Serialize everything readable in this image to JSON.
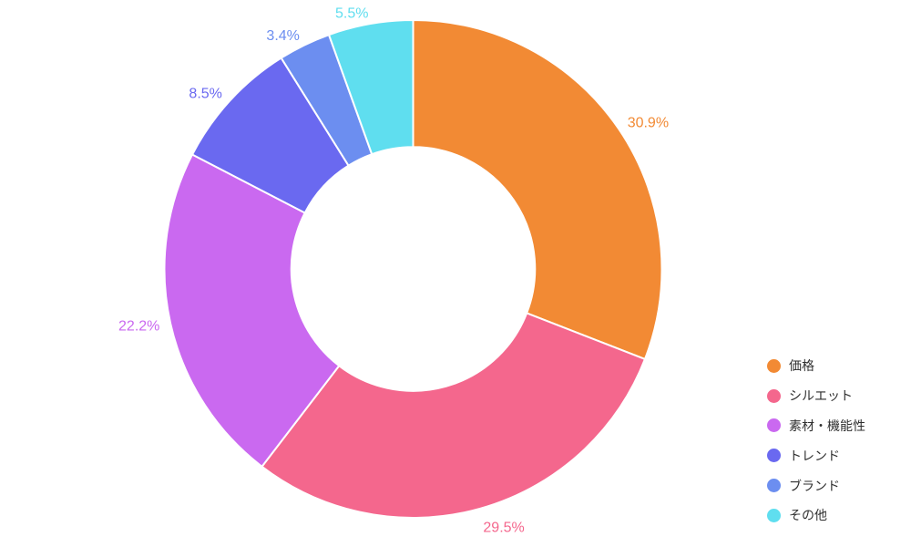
{
  "page": {
    "background": "#FFFFFF"
  },
  "chart_data": {
    "type": "pie",
    "subtype": "donut",
    "title": "",
    "hole_ratio": 0.49,
    "rotation_deg": 0,
    "direction": "clockwise",
    "categories": [
      "価格",
      "シルエット",
      "素材・機能性",
      "トレンド",
      "ブランド",
      "その他"
    ],
    "values": [
      30.9,
      29.5,
      22.2,
      8.5,
      3.4,
      5.5
    ],
    "value_unit": "percent",
    "percent_labels": [
      "30.9%",
      "29.5%",
      "22.2%",
      "8.5%",
      "3.4%",
      "5.5%"
    ],
    "colors": [
      "#F28A34",
      "#F4678D",
      "#CA69F0",
      "#6A69F0",
      "#6C8EF0",
      "#5FDEEF"
    ],
    "slice_border_color": "#FFFFFF",
    "labels_outside": true,
    "label_color_matches_slice": true,
    "legend": {
      "position": "right",
      "text_color": "#2F2F2F",
      "entries": [
        {
          "label": "価格",
          "color": "#F28A34"
        },
        {
          "label": "シルエット",
          "color": "#F4678D"
        },
        {
          "label": "素材・機能性",
          "color": "#CA69F0"
        },
        {
          "label": "トレンド",
          "color": "#6A69F0"
        },
        {
          "label": "ブランド",
          "color": "#6C8EF0"
        },
        {
          "label": "その他",
          "color": "#5FDEEF"
        }
      ]
    }
  }
}
